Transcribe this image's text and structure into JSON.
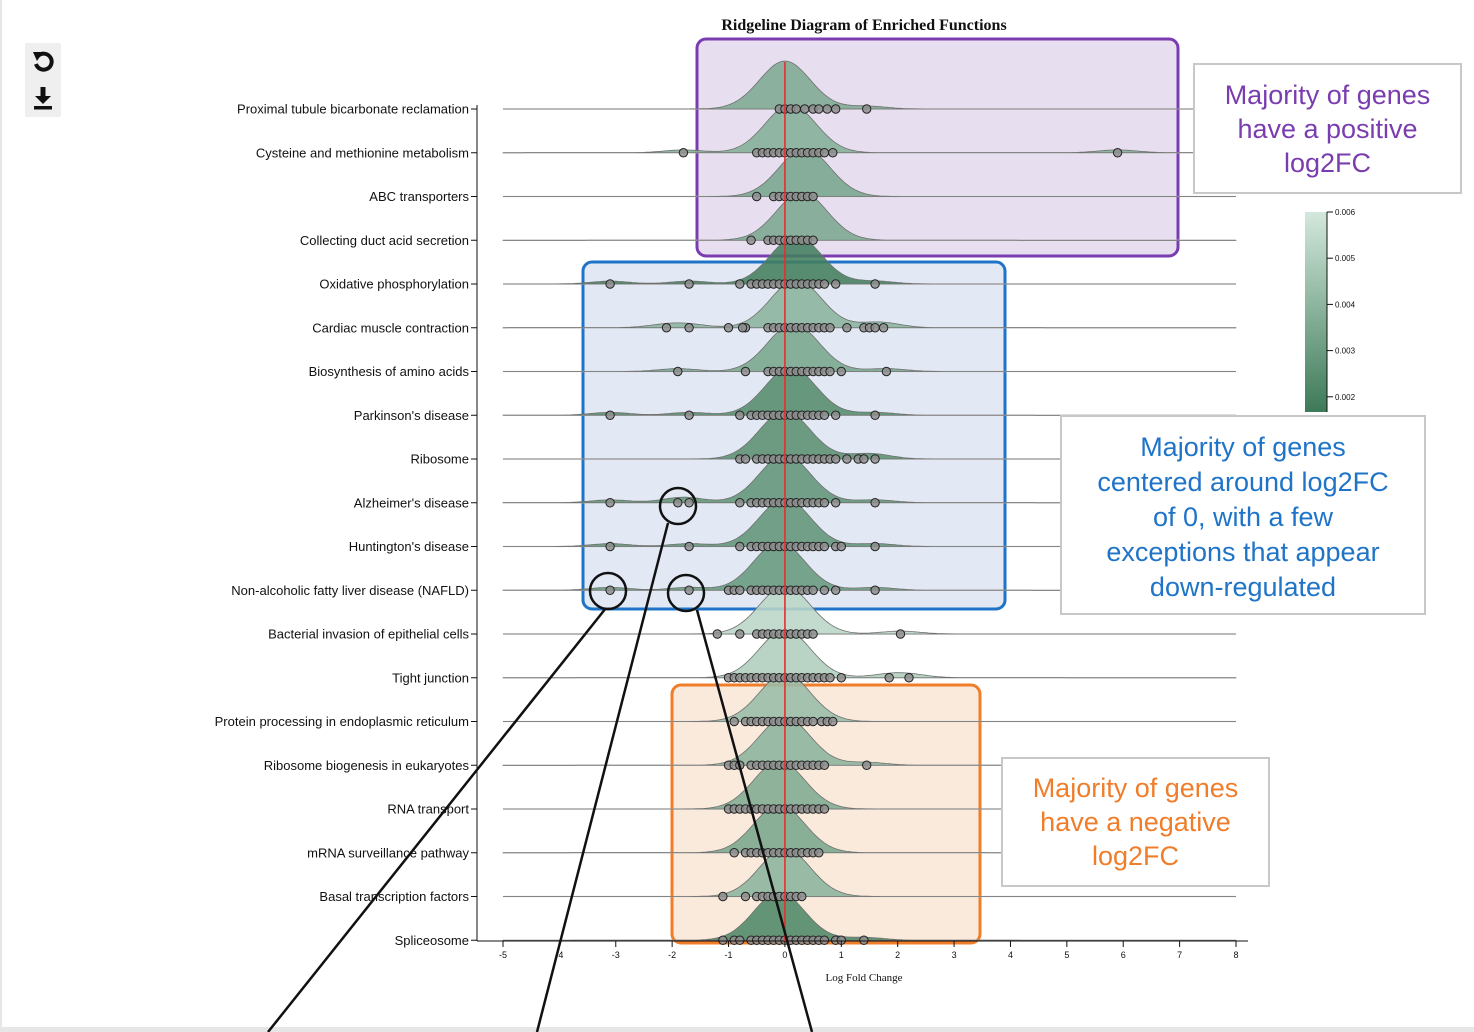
{
  "toolbar": {
    "reset_icon": "rotate-ccw-icon",
    "download_icon": "download-icon"
  },
  "chart_data": {
    "type": "ridgeline",
    "title": "Ridgeline Diagram of Enriched Functions",
    "xlabel": "Log Fold Change",
    "ylabel": "",
    "xlim": [
      -5,
      8
    ],
    "x_ticks": [
      -5,
      -4,
      -3,
      -2,
      -1,
      0,
      1,
      2,
      3,
      4,
      5,
      6,
      7,
      8
    ],
    "reference_line_x": 0,
    "reference_line_color": "#e03030",
    "grid": false,
    "color_legend": {
      "placement": "right",
      "ticks": [
        "0.006",
        "0.005",
        "0.004",
        "0.003",
        "0.002"
      ],
      "color_low": "#3d7a58",
      "color_high": "#d3e8dc"
    },
    "categories": [
      "Proximal tubule bicarbonate reclamation",
      "Cysteine and methionine metabolism",
      "ABC transporters",
      "Collecting duct acid secretion",
      "Oxidative phosphorylation",
      "Cardiac muscle contraction",
      "Biosynthesis of amino acids",
      "Parkinson's disease",
      "Ribosome",
      "Alzheimer's disease",
      "Huntington's disease",
      "Non-alcoholic fatty liver disease (NAFLD)",
      "Bacterial invasion of epithelial cells",
      "Tight junction",
      "Protein processing in endoplasmic reticulum",
      "Ribosome biogenesis in eukaryotes",
      "RNA transport",
      "mRNA surveillance pathway",
      "Basal transcription factors",
      "Spliceosome"
    ],
    "series": [
      {
        "density_peak_x": 0.0,
        "density": 0.0032,
        "points": [
          -0.1,
          0.0,
          0.1,
          0.2,
          0.35,
          0.5,
          0.6,
          0.75,
          0.9,
          1.45
        ]
      },
      {
        "density_peak_x": 0.1,
        "density": 0.0034,
        "points": [
          -1.8,
          -0.5,
          -0.4,
          -0.3,
          -0.2,
          -0.1,
          0.0,
          0.1,
          0.2,
          0.3,
          0.4,
          0.5,
          0.6,
          0.7,
          0.85,
          5.9
        ]
      },
      {
        "density_peak_x": 0.35,
        "density": 0.003,
        "points": [
          -0.5,
          -0.2,
          -0.1,
          0.0,
          0.1,
          0.2,
          0.3,
          0.4,
          0.5
        ]
      },
      {
        "density_peak_x": 0.3,
        "density": 0.0031,
        "points": [
          -0.6,
          -0.3,
          -0.2,
          -0.1,
          0.0,
          0.1,
          0.2,
          0.3,
          0.4,
          0.5
        ]
      },
      {
        "density_peak_x": 0.2,
        "density": 0.0012,
        "points": [
          -3.1,
          -1.7,
          -0.8,
          -0.6,
          -0.5,
          -0.4,
          -0.3,
          -0.2,
          -0.1,
          0.0,
          0.1,
          0.2,
          0.3,
          0.4,
          0.5,
          0.6,
          0.7,
          0.9,
          1.6
        ]
      },
      {
        "density_peak_x": 0.2,
        "density": 0.0036,
        "points": [
          -2.1,
          -1.7,
          -1.0,
          -0.7,
          -0.75,
          -0.3,
          -0.2,
          -0.1,
          0.0,
          0.1,
          0.2,
          0.3,
          0.4,
          0.5,
          0.6,
          0.7,
          0.8,
          1.1,
          1.4,
          1.5,
          1.6,
          1.75
        ]
      },
      {
        "density_peak_x": 0.15,
        "density": 0.003,
        "points": [
          -1.9,
          -0.7,
          -0.3,
          -0.2,
          -0.1,
          0.0,
          0.1,
          0.2,
          0.3,
          0.4,
          0.5,
          0.6,
          0.7,
          0.8,
          1.0,
          1.8
        ]
      },
      {
        "density_peak_x": 0.1,
        "density": 0.0018,
        "points": [
          -3.1,
          -1.7,
          -0.8,
          -0.6,
          -0.5,
          -0.4,
          -0.3,
          -0.2,
          -0.1,
          0.0,
          0.1,
          0.2,
          0.3,
          0.4,
          0.5,
          0.6,
          0.7,
          0.9,
          1.6
        ]
      },
      {
        "density_peak_x": 0.0,
        "density": 0.002,
        "points": [
          -0.8,
          -0.7,
          -0.5,
          -0.4,
          -0.3,
          -0.2,
          -0.1,
          0.0,
          0.1,
          0.2,
          0.3,
          0.4,
          0.5,
          0.6,
          0.7,
          0.8,
          0.9,
          1.1,
          1.3,
          1.4,
          1.6
        ]
      },
      {
        "density_peak_x": 0.0,
        "density": 0.0022,
        "points": [
          -3.1,
          -1.9,
          -1.7,
          -0.8,
          -0.6,
          -0.5,
          -0.4,
          -0.3,
          -0.2,
          -0.1,
          0.0,
          0.1,
          0.2,
          0.3,
          0.4,
          0.5,
          0.6,
          0.7,
          0.9,
          1.6
        ]
      },
      {
        "density_peak_x": 0.0,
        "density": 0.0022,
        "points": [
          -3.1,
          -1.7,
          -0.8,
          -0.6,
          -0.5,
          -0.4,
          -0.3,
          -0.2,
          -0.1,
          0.0,
          0.1,
          0.2,
          0.3,
          0.4,
          0.5,
          0.6,
          0.7,
          0.9,
          1.0,
          1.6
        ]
      },
      {
        "density_peak_x": -0.1,
        "density": 0.0024,
        "points": [
          -3.1,
          -1.7,
          -1.0,
          -0.9,
          -0.8,
          -0.6,
          -0.5,
          -0.4,
          -0.3,
          -0.2,
          -0.1,
          0.0,
          0.1,
          0.2,
          0.3,
          0.4,
          0.5,
          0.7,
          0.9,
          1.6
        ]
      },
      {
        "density_peak_x": 0.0,
        "density": 0.0052,
        "points": [
          -1.2,
          -0.8,
          -0.5,
          -0.4,
          -0.3,
          -0.2,
          -0.1,
          0.0,
          0.1,
          0.2,
          0.3,
          0.4,
          0.5,
          2.05
        ]
      },
      {
        "density_peak_x": 0.0,
        "density": 0.0048,
        "points": [
          -1.0,
          -0.9,
          -0.8,
          -0.7,
          -0.6,
          -0.5,
          -0.4,
          -0.3,
          -0.2,
          -0.1,
          0.0,
          0.1,
          0.2,
          0.3,
          0.4,
          0.5,
          0.6,
          0.7,
          0.8,
          1.0,
          1.85,
          2.2
        ]
      },
      {
        "density_peak_x": 0.0,
        "density": 0.004,
        "points": [
          -0.9,
          -0.7,
          -0.6,
          -0.5,
          -0.4,
          -0.3,
          -0.2,
          -0.1,
          0.0,
          0.1,
          0.2,
          0.3,
          0.4,
          0.5,
          0.65,
          0.75,
          0.85
        ]
      },
      {
        "density_peak_x": 0.0,
        "density": 0.0036,
        "points": [
          -1.0,
          -0.9,
          -0.8,
          -0.6,
          -0.5,
          -0.4,
          -0.3,
          -0.2,
          -0.1,
          0.0,
          0.1,
          0.2,
          0.3,
          0.4,
          0.5,
          0.6,
          0.7,
          1.45
        ]
      },
      {
        "density_peak_x": -0.1,
        "density": 0.0032,
        "points": [
          -1.0,
          -0.9,
          -0.8,
          -0.7,
          -0.6,
          -0.5,
          -0.4,
          -0.3,
          -0.2,
          -0.1,
          0.0,
          0.1,
          0.2,
          0.3,
          0.4,
          0.5,
          0.6,
          0.7
        ]
      },
      {
        "density_peak_x": -0.1,
        "density": 0.003,
        "points": [
          -0.9,
          -0.7,
          -0.6,
          -0.5,
          -0.4,
          -0.3,
          -0.2,
          -0.1,
          0.0,
          0.1,
          0.2,
          0.3,
          0.4,
          0.5,
          0.6
        ]
      },
      {
        "density_peak_x": 0.0,
        "density": 0.0036,
        "points": [
          -1.1,
          -0.7,
          -0.5,
          -0.4,
          -0.3,
          -0.2,
          -0.1,
          0.0,
          0.1,
          0.2,
          0.3
        ]
      },
      {
        "density_peak_x": -0.1,
        "density": 0.0016,
        "points": [
          -1.1,
          -0.9,
          -0.8,
          -0.6,
          -0.5,
          -0.4,
          -0.3,
          -0.2,
          -0.1,
          0.0,
          0.1,
          0.2,
          0.3,
          0.4,
          0.5,
          0.6,
          0.7,
          0.9,
          1.0,
          1.4
        ]
      }
    ],
    "annotations": [
      {
        "text": "Majority of genes have a positive log2FC",
        "lines": [
          "Majority of genes",
          "have a positive",
          "log2FC"
        ],
        "color": "#7a3db0",
        "fill": "#e7dff0",
        "rows": [
          0,
          3
        ]
      },
      {
        "text": "Majority of genes centered around log2FC of 0, with a few exceptions that appear down-regulated",
        "lines": [
          "Majority of genes",
          "centered around log2FC",
          "of 0, with a few",
          "exceptions that appear",
          "down-regulated"
        ],
        "color": "#1f74c8",
        "fill": "#e2e8f4",
        "rows": [
          4,
          11
        ]
      },
      {
        "text": "Majority of genes have a negative log2FC",
        "lines": [
          "Majority of genes",
          "have a negative",
          "log2FC"
        ],
        "color": "#f07d2a",
        "fill": "#faeadb",
        "rows": [
          14,
          19
        ]
      }
    ]
  }
}
